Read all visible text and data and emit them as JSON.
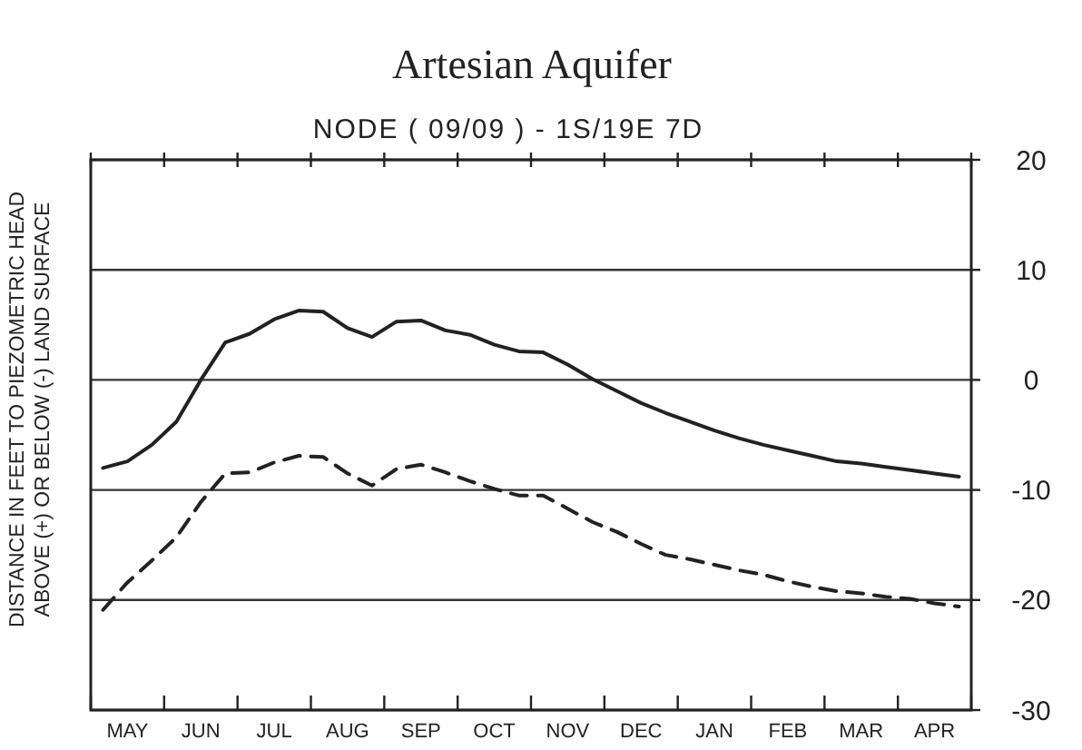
{
  "chart_data": {
    "type": "line",
    "title": "Artesian Aquifer",
    "subtitle": "NODE ( 09/09 ) - 1S/19E 7D",
    "ylabel": "DISTANCE IN FEET TO PIEZOMETRIC HEAD\nABOVE (+) OR BELOW (-) LAND SURFACE",
    "categories": [
      null,
      "MAY",
      null,
      null,
      "JUN",
      null,
      null,
      "JUL",
      null,
      null,
      "AUG",
      null,
      null,
      "SEP",
      null,
      null,
      "OCT",
      null,
      null,
      "NOV",
      null,
      null,
      "DEC",
      null,
      null,
      "JAN",
      null,
      null,
      "FEB",
      null,
      null,
      "MAR",
      null,
      null,
      "APR",
      null
    ],
    "ylim": [
      -30,
      20
    ],
    "yticks": [
      -30,
      -20,
      -10,
      0,
      10,
      20
    ],
    "grid": "y",
    "marker": "none",
    "series": [
      {
        "color": "#222222",
        "line_style": "solid",
        "values": [
          -8.0,
          -7.4,
          -5.9,
          -3.8,
          0.0,
          3.4,
          4.2,
          5.5,
          6.3,
          6.2,
          4.7,
          3.9,
          5.3,
          5.4,
          4.5,
          4.1,
          3.2,
          2.6,
          2.5,
          1.4,
          0.1,
          -1.0,
          -2.1,
          -3.0,
          -3.8,
          -4.6,
          -5.3,
          -5.9,
          -6.4,
          -6.9,
          -7.4,
          -7.6,
          -7.9,
          -8.2,
          -8.5,
          -8.8
        ]
      },
      {
        "color": "#222222",
        "line_style": "dashed",
        "values": [
          -20.9,
          -18.4,
          -16.4,
          -14.3,
          -11.1,
          -8.5,
          -8.4,
          -7.5,
          -6.9,
          -7.0,
          -8.5,
          -9.6,
          -8.1,
          -7.7,
          -8.4,
          -9.2,
          -9.9,
          -10.5,
          -10.5,
          -11.7,
          -12.9,
          -13.8,
          -14.9,
          -15.9,
          -16.3,
          -16.8,
          -17.3,
          -17.7,
          -18.3,
          -18.8,
          -19.2,
          -19.4,
          -19.7,
          -19.9,
          -20.3,
          -20.6
        ]
      }
    ]
  }
}
